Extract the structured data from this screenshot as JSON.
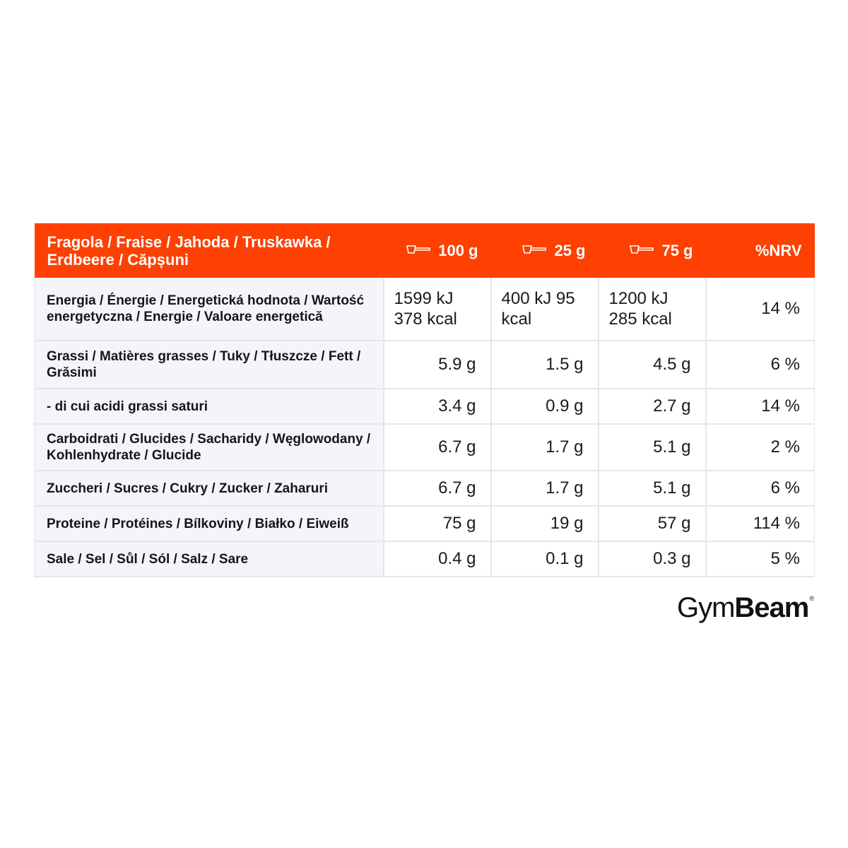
{
  "header": {
    "flavor": "Fragola / Fraise / Jahoda / Truskawka / Erdbeere / Căpșuni",
    "columns": [
      {
        "label": "100 g",
        "icon": "scoop-icon"
      },
      {
        "label": "25 g",
        "icon": "scoop-icon"
      },
      {
        "label": "75 g",
        "icon": "scoop-icon"
      },
      {
        "label": "%NRV"
      }
    ]
  },
  "rows": [
    {
      "label": "Energia / Énergie / Energetická hodnota / Wartość energetyczna / Energie / Valoare energetică",
      "v100": "1599 kJ 378 kcal",
      "v25": "400 kJ 95 kcal",
      "v75": "1200 kJ 285 kcal",
      "nrv": "14 %"
    },
    {
      "label": "Grassi / Matières grasses / Tuky / Tłuszcze / Fett / Grăsimi",
      "v100": "5.9 g",
      "v25": "1.5 g",
      "v75": "4.5 g",
      "nrv": "6 %"
    },
    {
      "label": "- di cui acidi grassi saturi",
      "v100": "3.4 g",
      "v25": "0.9 g",
      "v75": "2.7 g",
      "nrv": "14 %"
    },
    {
      "label": "Carboidrati / Glucides / Sacharidy / Węglowodany / Kohlenhydrate / Glucide",
      "v100": "6.7 g",
      "v25": "1.7 g",
      "v75": "5.1 g",
      "nrv": "2 %"
    },
    {
      "label": "Zuccheri / Sucres / Cukry / Zucker / Zaharuri",
      "v100": "6.7 g",
      "v25": "1.7 g",
      "v75": "5.1 g",
      "nrv": "6 %"
    },
    {
      "label": "Proteine / Protéines / Bílkoviny / Białko / Eiweiß",
      "v100": "75 g",
      "v25": "19 g",
      "v75": "57 g",
      "nrv": "114 %"
    },
    {
      "label": "Sale / Sel / Sůl / Sól / Salz / Sare",
      "v100": "0.4 g",
      "v25": "0.1 g",
      "v75": "0.3 g",
      "nrv": "5 %"
    }
  ],
  "logo": {
    "part1": "Gym",
    "part2": "Beam",
    "registered": "®"
  },
  "colors": {
    "header_bg": "#fe4002",
    "label_bg": "#f4f5f8",
    "border": "#e3e6ec"
  }
}
